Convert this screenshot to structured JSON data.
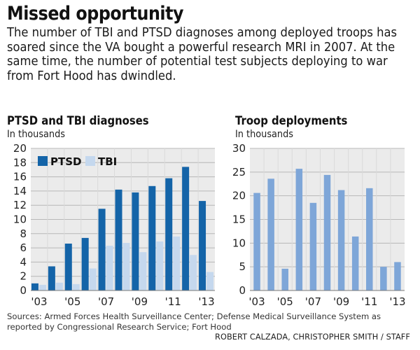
{
  "headline": "Missed opportunity",
  "intro": "The number of TBI and PTSD diagnoses among deployed troops has soared since the VA bought a powerful research MRI in 2007. At the same time, the number of potential test subjects deploying to war from Fort Hood has dwindled.",
  "footer": {
    "sources": "Sources: Armed Forces Health Surveillance Center; Defense Medical Surveillance System as reported by Congressional Research Service; Fort Hood",
    "credit": "ROBERT CALZADA, CHRISTOPHER SMITH / STAFF"
  },
  "colors": {
    "dark_blue": "#1464a8",
    "light_blue": "#c5d8ee",
    "mid_blue": "#7ea6d8",
    "grid": "#b8b8b8",
    "panel_bg": "#ebebeb"
  },
  "chart_data": [
    {
      "type": "bar",
      "title": "PTSD and  TBI diagnoses",
      "subtitle": "In thousands",
      "categories": [
        "2003",
        "2004",
        "2005",
        "2006",
        "2007",
        "2008",
        "2009",
        "2010",
        "2011",
        "2012",
        "2013"
      ],
      "x_tick_labels": [
        {
          "category": "2003",
          "label": "'03"
        },
        {
          "category": "2005",
          "label": "'05"
        },
        {
          "category": "2007",
          "label": "'07"
        },
        {
          "category": "2009",
          "label": "'09"
        },
        {
          "category": "2011",
          "label": "'11"
        },
        {
          "category": "2013",
          "label": "'13"
        }
      ],
      "series": [
        {
          "name": "PTSD",
          "color": "#1464a8",
          "values": [
            1.0,
            3.4,
            6.6,
            7.4,
            11.5,
            14.2,
            13.8,
            14.7,
            15.8,
            17.4,
            12.6
          ]
        },
        {
          "name": "TBI",
          "color": "#c5d8ee",
          "values": [
            0.8,
            1.1,
            0.9,
            3.1,
            6.3,
            6.7,
            5.4,
            6.9,
            7.6,
            5.0,
            2.6
          ]
        }
      ],
      "ylim": [
        0,
        20
      ],
      "yticks": [
        0,
        2,
        4,
        6,
        8,
        10,
        12,
        14,
        16,
        18,
        20
      ],
      "grid": true,
      "legend": "top"
    },
    {
      "type": "bar",
      "title": "Troop deployments",
      "subtitle": "In thousands",
      "categories": [
        "2003",
        "2004",
        "2005",
        "2006",
        "2007",
        "2008",
        "2009",
        "2010",
        "2011",
        "2012",
        "2013"
      ],
      "x_tick_labels": [
        {
          "category": "2003",
          "label": "'03"
        },
        {
          "category": "2005",
          "label": "'05"
        },
        {
          "category": "2007",
          "label": "'07"
        },
        {
          "category": "2009",
          "label": "'09"
        },
        {
          "category": "2011",
          "label": "'11"
        },
        {
          "category": "2013",
          "label": "'13"
        }
      ],
      "series": [
        {
          "color": "#7ea6d8",
          "values": [
            20.6,
            23.6,
            4.6,
            25.7,
            18.5,
            24.4,
            21.2,
            11.4,
            21.6,
            5.0,
            6.0
          ]
        }
      ],
      "ylim": [
        0,
        30
      ],
      "yticks": [
        0,
        5,
        10,
        15,
        20,
        25,
        30
      ],
      "grid": true
    }
  ]
}
